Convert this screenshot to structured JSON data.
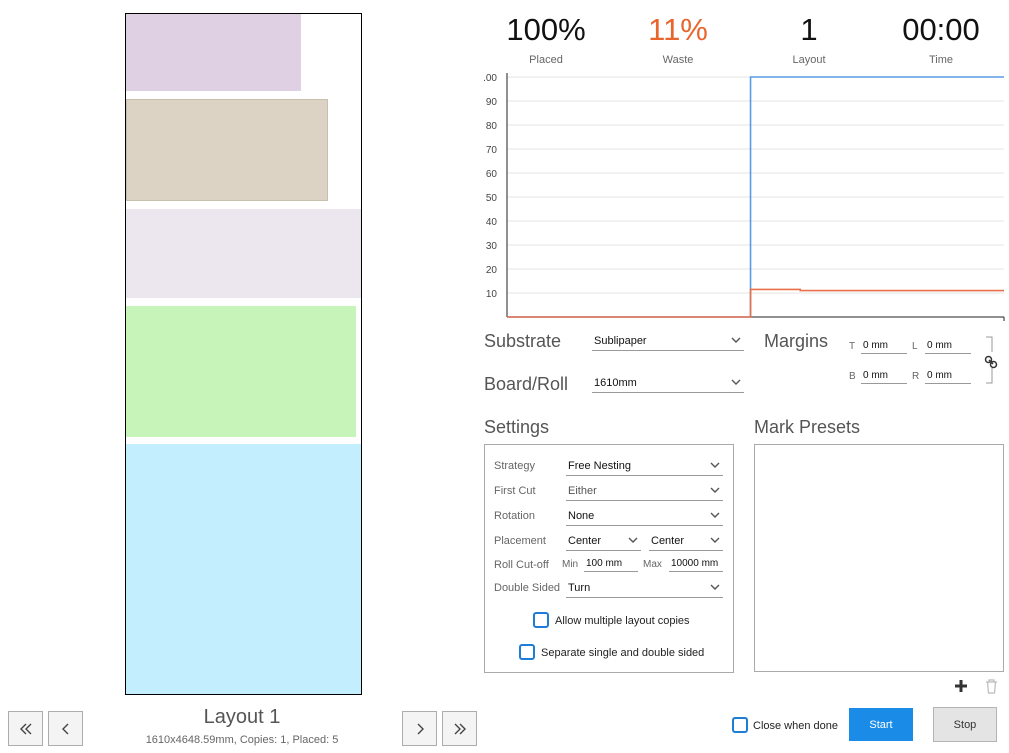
{
  "stats": {
    "placed": {
      "value": "100%",
      "label": "Placed"
    },
    "waste": {
      "value": "11%",
      "label": "Waste"
    },
    "layout": {
      "value": "1",
      "label": "Layout"
    },
    "time": {
      "value": "00:00",
      "label": "Time"
    }
  },
  "layout_panel": {
    "title": "Layout 1",
    "info": "1610x4648.59mm, Copies: 1, Placed: 5",
    "pieces": [
      {
        "name": "piece-1",
        "color": "#e0d0e4"
      },
      {
        "name": "piece-2",
        "color": "#ddd3c4"
      },
      {
        "name": "piece-3",
        "color": "#ece6ee"
      },
      {
        "name": "piece-4",
        "color": "#c7f5b9"
      },
      {
        "name": "piece-5",
        "color": "#c2eefd"
      }
    ],
    "nav_icons": [
      "double-chevron-left-icon",
      "chevron-left-icon",
      "chevron-right-icon",
      "double-chevron-right-icon"
    ]
  },
  "chart_data": {
    "type": "line",
    "ylim": [
      0,
      100
    ],
    "y_ticks": [
      ".00",
      "90",
      "80",
      "70",
      "60",
      "50",
      "40",
      "30",
      "20",
      "10"
    ],
    "grid": true,
    "series": [
      {
        "color": "#5b9be6",
        "x": [
          0,
          0.49,
          0.49,
          1
        ],
        "values": [
          0,
          0,
          100,
          100
        ]
      },
      {
        "color": "#e8704a",
        "x": [
          0,
          0.49,
          0.49,
          0.59,
          0.59,
          1
        ],
        "values": [
          0,
          0,
          11.5,
          11.5,
          11,
          11
        ]
      }
    ]
  },
  "substrate": {
    "label": "Substrate",
    "value": "Sublipaper"
  },
  "board_roll": {
    "label": "Board/Roll",
    "value": "1610mm"
  },
  "margins": {
    "label": "Margins",
    "t_label": "T",
    "t_value": "0 mm",
    "l_label": "L",
    "l_value": "0 mm",
    "b_label": "B",
    "b_value": "0 mm",
    "r_label": "R",
    "r_value": "0 mm",
    "link_icon": "link-icon"
  },
  "settings": {
    "label": "Settings",
    "strategy_label": "Strategy",
    "strategy_value": "Free Nesting",
    "first_cut_label": "First Cut",
    "first_cut_value": "Either",
    "rotation_label": "Rotation",
    "rotation_value": "None",
    "placement_label": "Placement",
    "placement_h": "Center",
    "placement_v": "Center",
    "roll_cutoff_label": "Roll Cut-off",
    "min_label": "Min",
    "min_value": "100 mm",
    "max_label": "Max",
    "max_value": "10000 mm",
    "double_sided_label": "Double Sided",
    "double_sided_value": "Turn",
    "allow_copies_label": "Allow multiple layout copies",
    "separate_label": "Separate single and double sided"
  },
  "mark_presets": {
    "label": "Mark Presets",
    "add_icon": "plus-icon",
    "delete_icon": "trash-icon"
  },
  "footer": {
    "close_when_done": "Close when done",
    "start": "Start",
    "stop": "Stop"
  },
  "colors": {
    "accent": "#1a8ce8",
    "waste": "#e8662e"
  }
}
